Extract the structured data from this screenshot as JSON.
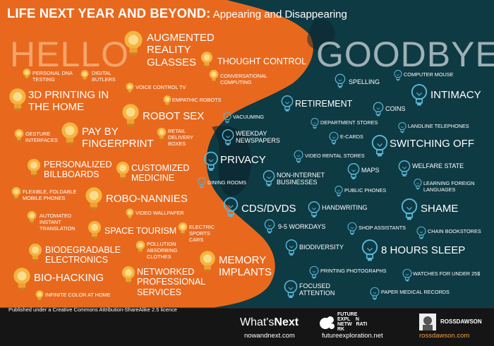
{
  "title": {
    "bold": "LIFE NEXT YEAR AND BEYOND:",
    "rest": " Appearing and Disappearing"
  },
  "hello_heading": "HELLO",
  "goodbye_heading": "GOODBYE",
  "colors": {
    "hello_bg": "#e8691e",
    "goodbye_bg": "#0e3a44",
    "dark": "#151515",
    "bulb_orange": "#f5b540",
    "bulb_blue": "#5ab7d6"
  },
  "hello_items": [
    "AUGMENTED REALITY GLASSES",
    "THOUGHT CONTROL",
    "PERSONAL DNA TESTING",
    "DIGITAL BUTLERS",
    "CONVERSATIONAL COMPUTING",
    "VOICE CONTROL TV",
    "3D PRINTING IN THE HOME",
    "EMPATHIC ROBOTS",
    "ROBOT SEX",
    "GESTURE INTERFACES",
    "PAY BY FINGERPRINT",
    "RETAIL DELIVERY BOXES",
    "PERSONALIZED BILLBOARDS",
    "CUSTOMIZED MEDICINE",
    "FLEXIBLE, FOLDABLE MOBILE PHONES",
    "ROBO-NANNIES",
    "VIDEO WALLPAPER",
    "AUTOMATED INSTANT TRANSLATION",
    "SPACE TOURISM",
    "ELECTRIC SPORTS CARS",
    "BIODEGRADABLE ELECTRONICS",
    "POLLUTION ABSORBING CLOTHES",
    "MEMORY IMPLANTS",
    "BIO-HACKING",
    "NETWORKED PROFESSIONAL SERVICES",
    "INFINITE COLOR AT HOME"
  ],
  "goodbye_items": [
    "SPELLING",
    "COMPUTER MOUSE",
    "INTIMACY",
    "RETIREMENT",
    "COINS",
    "VACUUMING",
    "DEPARTMENT STORES",
    "LANDLINE TELEPHONES",
    "WEEKDAY NEWSPAPERS",
    "E-CARDS",
    "SWITCHING OFF",
    "PRIVACY",
    "VIDEO RENTAL STORES",
    "MAPS",
    "WELFARE STATE",
    "DINING ROOMS",
    "NON-INTERNET BUSINESSES",
    "PUBLIC PHONES",
    "LEARNING FOREIGN LANGUAGES",
    "CDS/DVDS",
    "HANDWRITING",
    "SHAME",
    "9-5 WORKDAYS",
    "SHOP ASSISTANTS",
    "CHAIN BOOKSTORES",
    "BIODIVERSITY",
    "8 HOURS SLEEP",
    "PRINTING PHOTOGRAPHS",
    "WATCHES FOR UNDER 25$",
    "FOCUSED ATTENTION",
    "PAPER MEDICAL RECORDS"
  ],
  "license": "Published under a Creative Commons Attribution-ShareAlike 2.5 licence",
  "logos": {
    "whatsnext_a": "What's",
    "whatsnext_b": "Next",
    "whatsnext_url": "nowandnext.com",
    "fen_line1": "FUTURE",
    "fen_line2": "EXPL    N",
    "fen_line3": "NETW   RATI",
    "fen_line4": "RK",
    "fen_url": "futureexploration.net",
    "rd_name": "ROSSDAWSON",
    "rd_url": "rossdawson.com"
  }
}
